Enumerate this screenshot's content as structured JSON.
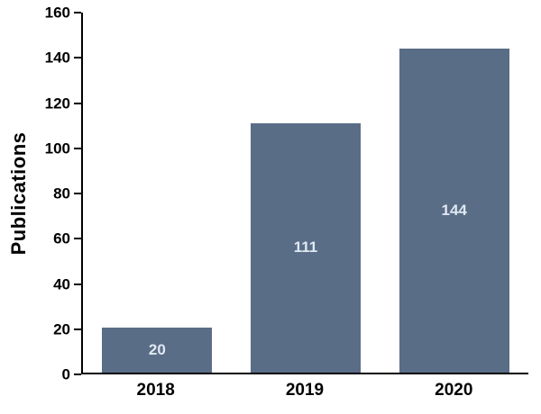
{
  "chart_data": {
    "type": "bar",
    "title": "",
    "xlabel": "",
    "ylabel": "Publications",
    "categories": [
      "2018",
      "2019",
      "2020"
    ],
    "values": [
      20,
      111,
      144
    ],
    "data_labels": [
      "20",
      "111",
      "144"
    ],
    "ylim": [
      0,
      160
    ],
    "yticks": [
      0,
      20,
      40,
      60,
      80,
      100,
      120,
      140,
      160
    ],
    "grid": false,
    "legend": false,
    "bar_color": "#5a6d87",
    "bar_label_color": "#dfe9f2",
    "axis_color": "#000000"
  }
}
